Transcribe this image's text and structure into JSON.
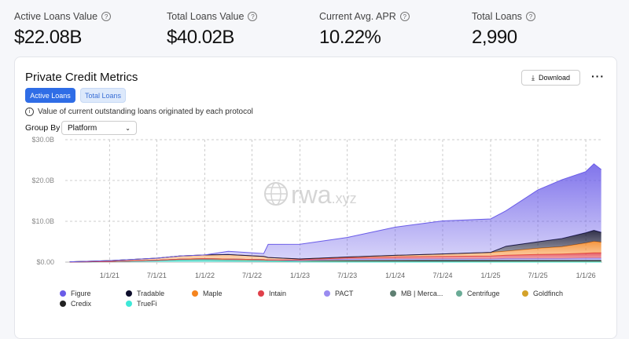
{
  "stats": [
    {
      "label": "Active Loans Value",
      "value": "$22.08B"
    },
    {
      "label": "Total Loans Value",
      "value": "$40.02B"
    },
    {
      "label": "Current Avg. APR",
      "value": "10.22%"
    },
    {
      "label": "Total Loans",
      "value": "2,990"
    }
  ],
  "card": {
    "title": "Private Credit Metrics",
    "download_label": "Download",
    "more_icon": "more-horizontal-icon",
    "tabs": [
      {
        "label": "Active Loans",
        "active": true
      },
      {
        "label": "Total Loans",
        "active": false
      }
    ],
    "info": "Value of current outstanding loans originated by each protocol",
    "group_by_label": "Group By",
    "group_by_value": "Platform",
    "watermark": "rwa.xyz"
  },
  "chart_data": {
    "type": "area",
    "stacked": true,
    "grid": true,
    "ylim": [
      0,
      30
    ],
    "yticks": [
      "$0.00",
      "$10.0B",
      "$20.0B",
      "$30.0B"
    ],
    "xticks": [
      "1/1/21",
      "7/1/21",
      "1/1/22",
      "7/1/22",
      "1/1/23",
      "7/1/23",
      "1/1/24",
      "7/1/24",
      "1/1/25",
      "7/1/25",
      "1/1/26"
    ],
    "x": [
      "2020-08-01",
      "2021-01-01",
      "2021-07-01",
      "2021-10-01",
      "2022-01-01",
      "2022-04-01",
      "2022-08-15",
      "2022-09-01",
      "2023-01-01",
      "2023-07-01",
      "2024-01-01",
      "2024-07-01",
      "2025-01-01",
      "2025-03-01",
      "2025-07-01",
      "2025-10-01",
      "2026-01-01",
      "2026-02-01",
      "2026-03-01"
    ],
    "legend_placement": "bottom",
    "series": [
      {
        "name": "TrueFi",
        "color": "#3ee8d8",
        "values": [
          0.02,
          0.1,
          0.3,
          0.4,
          0.4,
          0.3,
          0.2,
          0.15,
          0.05,
          0.02,
          0.01,
          0.01,
          0.01,
          0.01,
          0.01,
          0.01,
          0.01,
          0.01,
          0.01
        ]
      },
      {
        "name": "Centrifuge",
        "color": "#6aab96",
        "values": [
          0,
          0.05,
          0.1,
          0.2,
          0.3,
          0.3,
          0.25,
          0.25,
          0.2,
          0.2,
          0.2,
          0.2,
          0.2,
          0.2,
          0.2,
          0.2,
          0.2,
          0.2,
          0.2
        ]
      },
      {
        "name": "Goldfinch",
        "color": "#d4a22a",
        "values": [
          0,
          0,
          0.05,
          0.1,
          0.1,
          0.1,
          0.1,
          0.1,
          0.1,
          0.1,
          0.08,
          0.07,
          0.05,
          0.05,
          0.05,
          0.05,
          0.05,
          0.05,
          0.05
        ]
      },
      {
        "name": "Credix",
        "color": "#222222",
        "values": [
          0,
          0,
          0,
          0.02,
          0.05,
          0.05,
          0.05,
          0.04,
          0.03,
          0.02,
          0.02,
          0.02,
          0.02,
          0.02,
          0.02,
          0.02,
          0.02,
          0.02,
          0.02
        ]
      },
      {
        "name": "MB | Merca...",
        "color": "#5f7f72",
        "values": [
          0,
          0,
          0,
          0,
          0,
          0,
          0,
          0,
          0,
          0.1,
          0.15,
          0.2,
          0.2,
          0.2,
          0.2,
          0.2,
          0.2,
          0.2,
          0.2
        ]
      },
      {
        "name": "PACT",
        "color": "#9a8cf0",
        "values": [
          0,
          0,
          0,
          0,
          0,
          0,
          0,
          0,
          0,
          0.3,
          0.3,
          0.3,
          0.3,
          0.4,
          0.4,
          0.4,
          0.5,
          0.5,
          0.5
        ]
      },
      {
        "name": "Intain",
        "color": "#e0404a",
        "values": [
          0,
          0,
          0,
          0,
          0,
          0,
          0,
          0,
          0.2,
          0.3,
          0.5,
          0.6,
          0.7,
          0.8,
          1.0,
          1.1,
          1.2,
          1.3,
          1.3
        ]
      },
      {
        "name": "Maple",
        "color": "#f5851f",
        "values": [
          0.05,
          0.2,
          0.5,
          0.8,
          0.9,
          1.1,
          0.8,
          0.6,
          0.2,
          0.2,
          0.4,
          0.6,
          0.9,
          1.0,
          1.5,
          1.8,
          2.5,
          2.8,
          2.6
        ]
      },
      {
        "name": "Tradable",
        "color": "#0d0d2b",
        "values": [
          0,
          0,
          0,
          0,
          0,
          0,
          0,
          0,
          0,
          0,
          0,
          0,
          0,
          1.2,
          1.6,
          2.0,
          2.5,
          2.7,
          2.4
        ]
      },
      {
        "name": "Figure",
        "color": "#6a5ce8",
        "values": [
          0,
          0,
          0,
          0,
          0,
          0.8,
          0.7,
          3.2,
          3.6,
          4.8,
          6.9,
          8.1,
          8.2,
          8.7,
          12.7,
          14.4,
          15.0,
          16.3,
          15.4
        ]
      }
    ]
  }
}
